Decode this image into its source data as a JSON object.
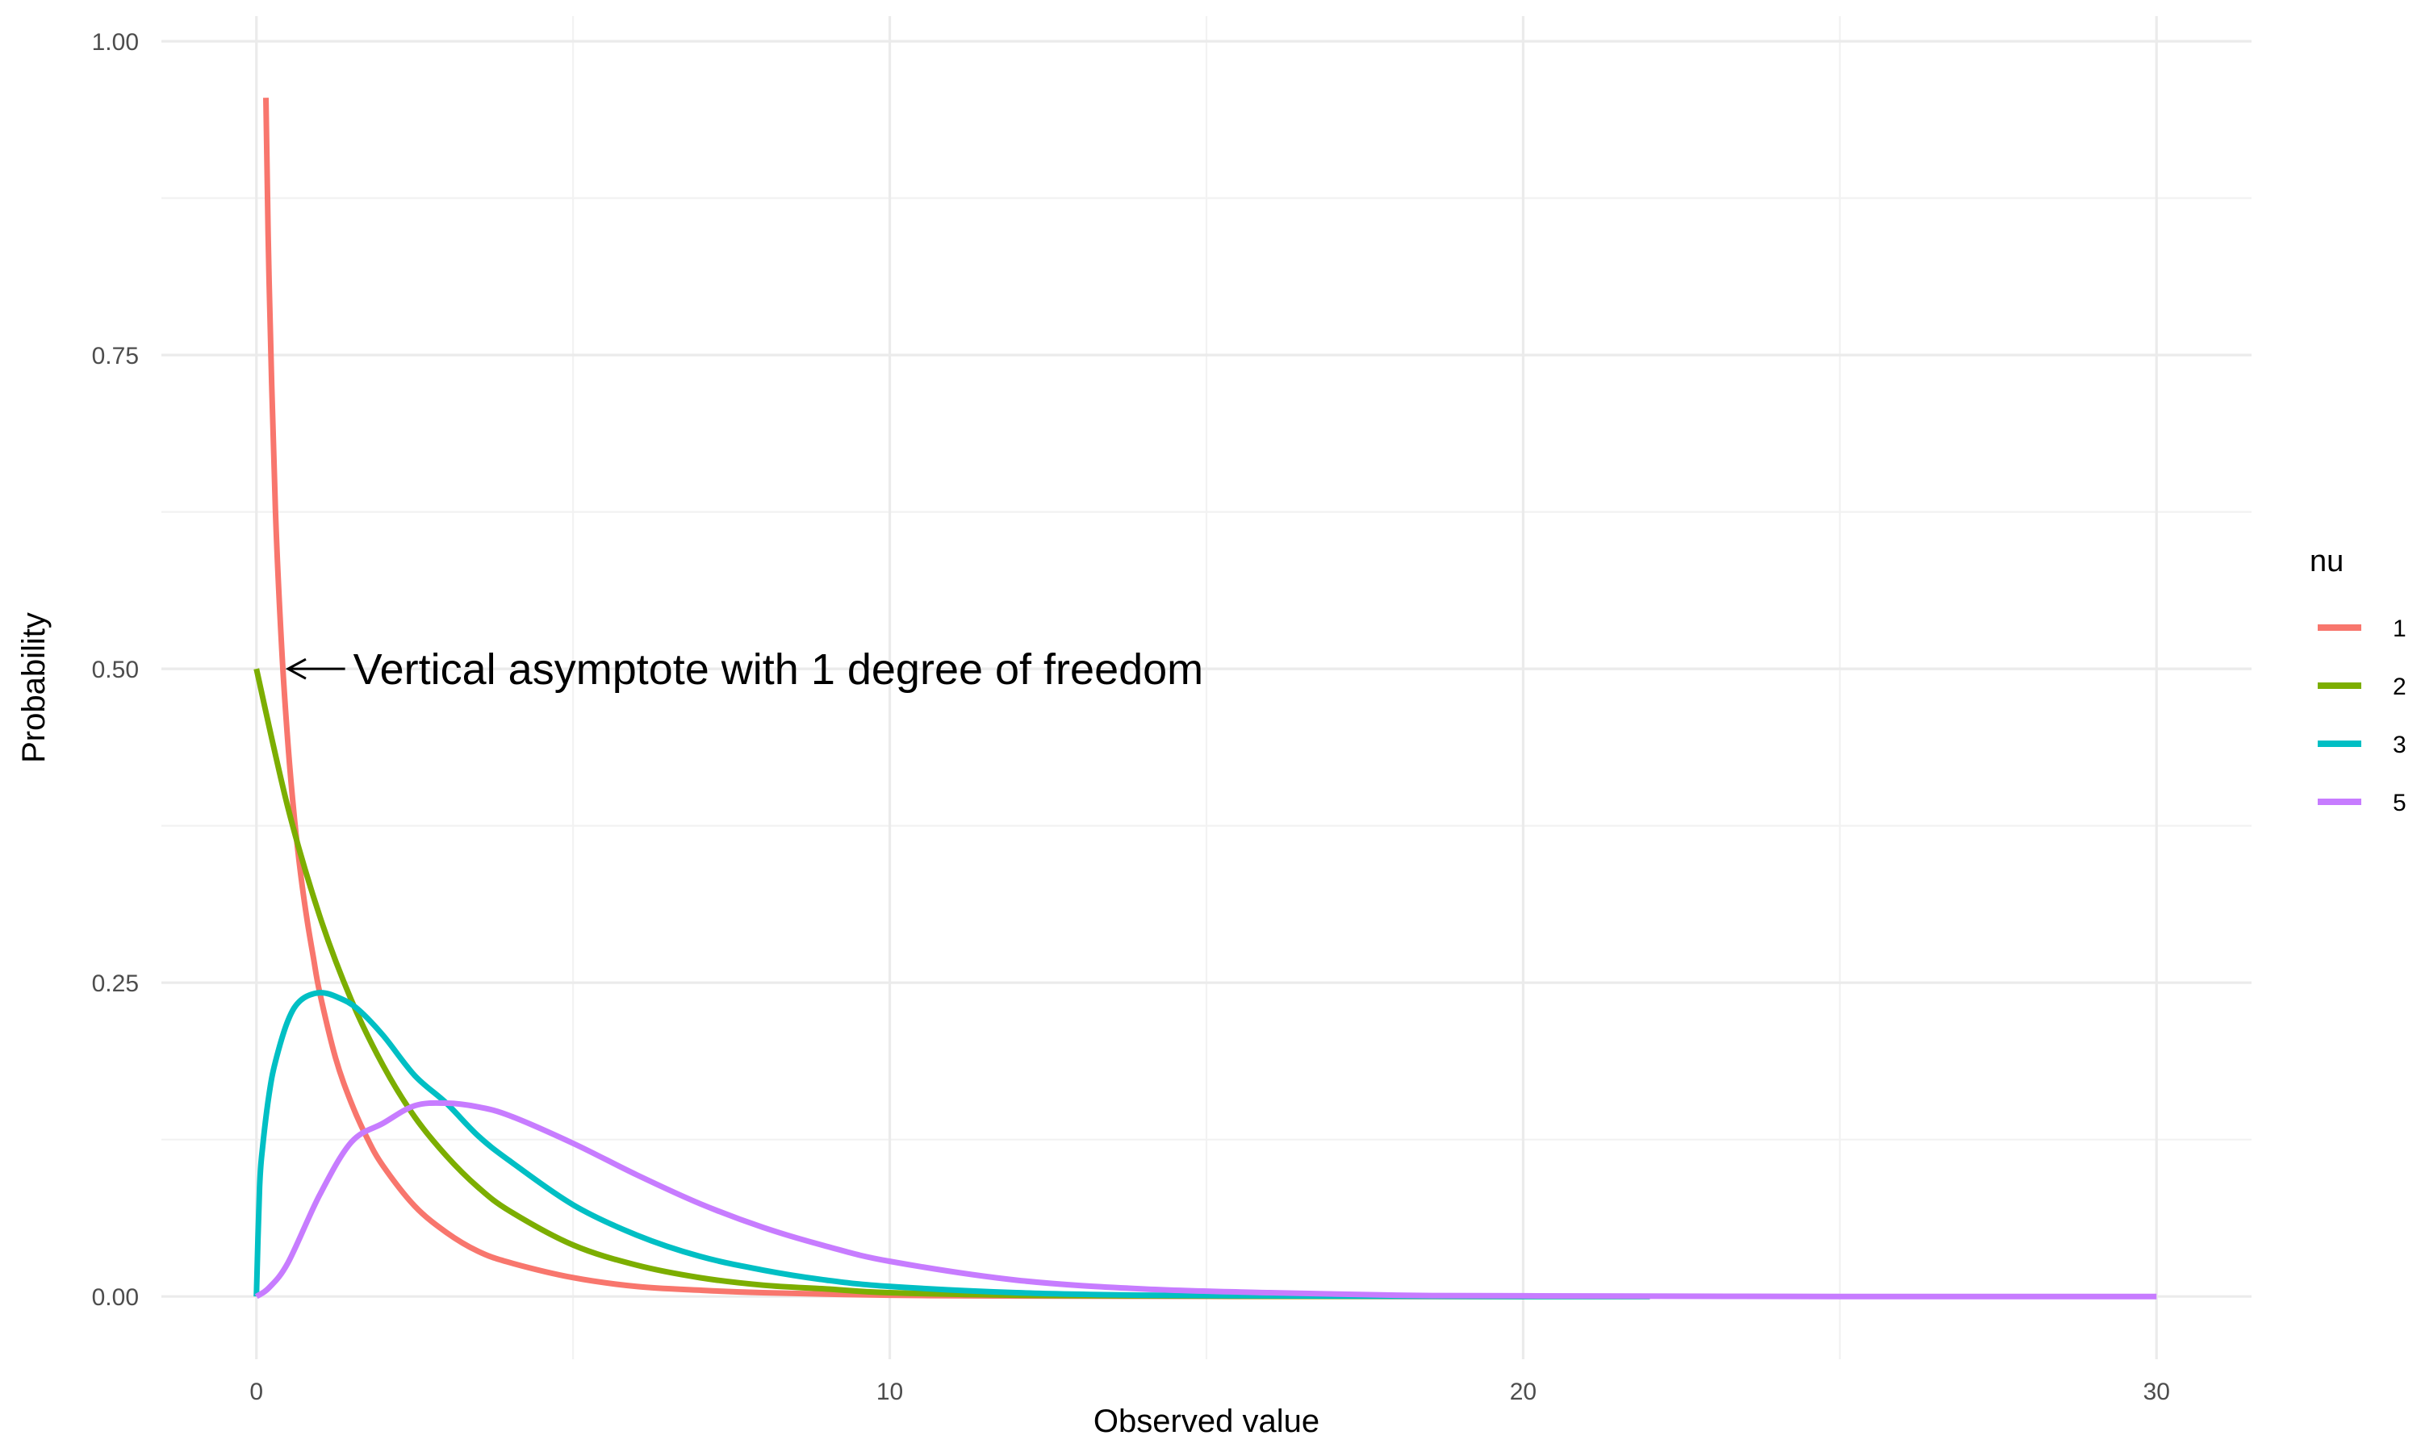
{
  "chart_data": {
    "type": "line",
    "title": "",
    "xlabel": "Observed value",
    "ylabel": "Probability",
    "xlim": [
      -1.5,
      31.5
    ],
    "ylim": [
      -0.05,
      1.02
    ],
    "x_ticks": [
      0,
      10,
      20,
      30
    ],
    "x_tick_labels": [
      "0",
      "10",
      "20",
      "30"
    ],
    "y_ticks": [
      0,
      0.25,
      0.5,
      0.75,
      1.0
    ],
    "y_tick_labels": [
      "0.00",
      "0.25",
      "0.50",
      "0.75",
      "1.00"
    ],
    "grid": true,
    "legend": {
      "title": "nu",
      "position": "right",
      "entries": [
        {
          "label": "1",
          "color": "#F8766D"
        },
        {
          "label": "2",
          "color": "#7CAE00"
        },
        {
          "label": "3",
          "color": "#00BFC4"
        },
        {
          "label": "5",
          "color": "#C77CFF"
        }
      ]
    },
    "series": [
      {
        "name": "1",
        "color": "#F8766D",
        "x": [
          0.15,
          0.2,
          0.3,
          0.4,
          0.5,
          0.6,
          0.7,
          0.8,
          0.9,
          1.0,
          1.25,
          1.5,
          1.75,
          2.0,
          2.5,
          3.0,
          3.5,
          4.0,
          5.0,
          6.0,
          7.0,
          8.0,
          10.0,
          12.0,
          15.0,
          18.0,
          20.0
        ],
        "y": [
          0.955,
          0.81,
          0.627,
          0.516,
          0.439,
          0.381,
          0.336,
          0.3,
          0.27,
          0.242,
          0.19,
          0.154,
          0.126,
          0.104,
          0.072,
          0.051,
          0.036,
          0.027,
          0.015,
          0.008,
          0.005,
          0.003,
          0.001,
          0.0004,
          0.0001,
          0.0,
          0.0
        ]
      },
      {
        "name": "2",
        "color": "#7CAE00",
        "x": [
          0,
          0.5,
          1.0,
          1.5,
          2.0,
          2.5,
          3.0,
          3.5,
          4.0,
          5.0,
          6.0,
          7.0,
          8.0,
          9.0,
          10.0,
          12.0,
          14.0,
          16.0,
          18.0,
          20.0,
          22.0
        ],
        "y": [
          0.5,
          0.389,
          0.303,
          0.236,
          0.184,
          0.143,
          0.112,
          0.087,
          0.068,
          0.041,
          0.025,
          0.015,
          0.009,
          0.006,
          0.003,
          0.001,
          0.0005,
          0.0002,
          0.0001,
          0.0,
          0.0
        ]
      },
      {
        "name": "3",
        "color": "#00BFC4",
        "x": [
          0,
          0.05,
          0.1,
          0.2,
          0.3,
          0.5,
          0.7,
          1.0,
          1.3,
          1.6,
          2.0,
          2.5,
          3.0,
          3.5,
          4.0,
          5.0,
          6.0,
          7.0,
          8.0,
          9.0,
          10.0,
          12.0,
          14.0,
          16.0,
          18.0,
          20.0,
          22.0
        ],
        "y": [
          0.0,
          0.087,
          0.12,
          0.161,
          0.187,
          0.22,
          0.236,
          0.242,
          0.238,
          0.229,
          0.208,
          0.176,
          0.154,
          0.128,
          0.108,
          0.073,
          0.049,
          0.032,
          0.021,
          0.013,
          0.008,
          0.003,
          0.001,
          0.0005,
          0.0002,
          0.0,
          0.0
        ]
      },
      {
        "name": "5",
        "color": "#C77CFF",
        "x": [
          0,
          0.2,
          0.5,
          1.0,
          1.5,
          2.0,
          2.5,
          3.0,
          3.5,
          4.0,
          5.0,
          6.0,
          7.0,
          8.0,
          9.0,
          10.0,
          12.0,
          14.0,
          16.0,
          18.0,
          20.0,
          25.0,
          30.0
        ],
        "y": [
          0.0,
          0.007,
          0.027,
          0.081,
          0.123,
          0.138,
          0.152,
          0.154,
          0.151,
          0.144,
          0.122,
          0.097,
          0.074,
          0.055,
          0.04,
          0.028,
          0.013,
          0.006,
          0.003,
          0.001,
          0.0005,
          0.0,
          0.0
        ]
      }
    ],
    "annotation": {
      "text": "Vertical asymptote with 1 degree of freedom",
      "arrow_to": [
        0.5,
        0.5
      ],
      "arrow_from": [
        1.4,
        0.5
      ]
    }
  }
}
